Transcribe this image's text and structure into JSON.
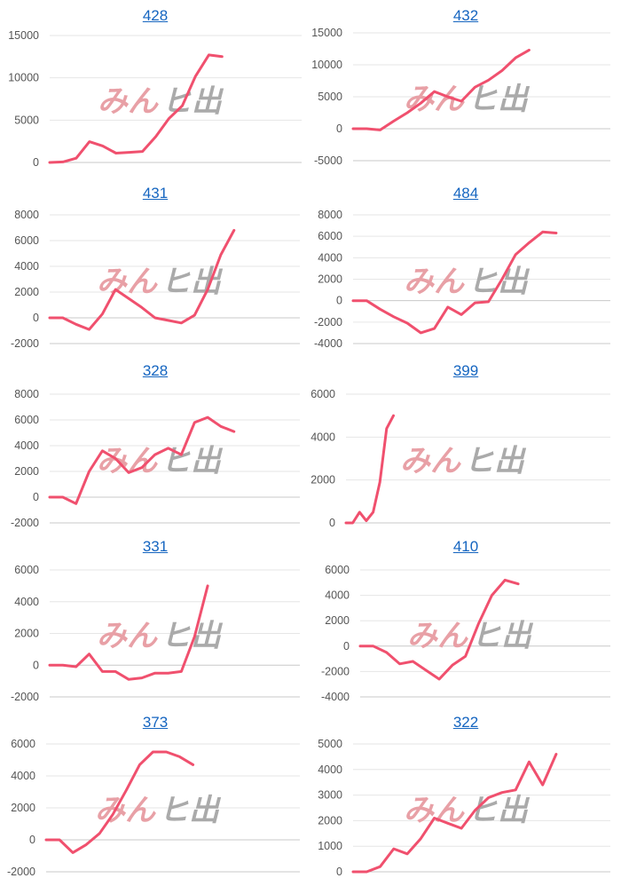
{
  "colors": {
    "line": "#f0506e",
    "grid": "#e6e6e6",
    "axis": "#c8c8c8",
    "title": "#1565c0",
    "tick": "#555555"
  },
  "watermark": {
    "part1": "みん",
    "part2": "ヒ出",
    "color1": "#e8a0a6",
    "color2": "#aaaaaa"
  },
  "chart_data": [
    {
      "type": "line",
      "title": "428",
      "yticks": [
        0,
        5000,
        10000,
        15000
      ],
      "ylim": [
        0,
        15000
      ],
      "x_count": 20,
      "values": [
        0,
        60,
        500,
        2450,
        1950,
        1100,
        1200,
        1300,
        3050,
        5200,
        6700,
        10200,
        12700,
        12500
      ]
    },
    {
      "type": "line",
      "title": "432",
      "yticks": [
        -5000,
        0,
        5000,
        10000,
        15000
      ],
      "ylim": [
        -5000,
        15000
      ],
      "x_count": 20,
      "values": [
        0,
        0,
        -200,
        1200,
        2500,
        4000,
        5800,
        5000,
        4300,
        6500,
        7600,
        9100,
        11100,
        12300
      ]
    },
    {
      "type": "line",
      "title": "431",
      "yticks": [
        -2000,
        0,
        2000,
        4000,
        6000,
        8000
      ],
      "ylim": [
        -2000,
        8000
      ],
      "x_count": 20,
      "values": [
        0,
        0,
        -500,
        -900,
        300,
        2200,
        1500,
        800,
        0,
        -200,
        -400,
        200,
        2200,
        4900,
        6800
      ]
    },
    {
      "type": "line",
      "title": "484",
      "yticks": [
        -4000,
        -2000,
        0,
        2000,
        4000,
        6000,
        8000
      ],
      "ylim": [
        -4000,
        8000
      ],
      "x_count": 20,
      "values": [
        0,
        0,
        -800,
        -1500,
        -2100,
        -3000,
        -2600,
        -600,
        -1300,
        -200,
        -100,
        2000,
        4300,
        5400,
        6400,
        6300
      ]
    },
    {
      "type": "line",
      "title": "328",
      "yticks": [
        -2000,
        0,
        2000,
        4000,
        6000,
        8000
      ],
      "ylim": [
        -2000,
        8000
      ],
      "x_count": 20,
      "values": [
        0,
        0,
        -500,
        2000,
        3600,
        3000,
        1900,
        2300,
        3300,
        3800,
        3300,
        5800,
        6200,
        5500,
        5100
      ]
    },
    {
      "type": "line",
      "title": "399",
      "yticks": [
        0,
        2000,
        4000,
        6000
      ],
      "ylim": [
        0,
        6000
      ],
      "x_count": 40,
      "values": [
        0,
        0,
        500,
        100,
        500,
        1900,
        4400,
        5000
      ]
    },
    {
      "type": "line",
      "title": "331",
      "yticks": [
        -2000,
        0,
        2000,
        4000,
        6000
      ],
      "ylim": [
        -2000,
        6000
      ],
      "x_count": 20,
      "values": [
        0,
        0,
        -100,
        700,
        -400,
        -400,
        -900,
        -800,
        -500,
        -500,
        -400,
        1800,
        5000
      ]
    },
    {
      "type": "line",
      "title": "410",
      "yticks": [
        -4000,
        -2000,
        0,
        2000,
        4000,
        6000
      ],
      "ylim": [
        -4000,
        6000
      ],
      "x_count": 20,
      "values": [
        0,
        0,
        -500,
        -1400,
        -1200,
        -1900,
        -2600,
        -1500,
        -800,
        1800,
        4000,
        5200,
        4900
      ]
    },
    {
      "type": "line",
      "title": "373",
      "yticks": [
        -2000,
        0,
        2000,
        4000,
        6000
      ],
      "ylim": [
        -2000,
        6000
      ],
      "x_count": 20,
      "values": [
        0,
        0,
        -800,
        -300,
        400,
        1600,
        3100,
        4700,
        5500,
        5500,
        5200,
        4700
      ]
    },
    {
      "type": "line",
      "title": "322",
      "yticks": [
        0,
        1000,
        2000,
        3000,
        4000,
        5000
      ],
      "ylim": [
        0,
        5000
      ],
      "x_count": 20,
      "values": [
        0,
        0,
        200,
        900,
        700,
        1300,
        2100,
        1900,
        1700,
        2400,
        2900,
        3100,
        3200,
        4300,
        3400,
        4600
      ]
    }
  ]
}
